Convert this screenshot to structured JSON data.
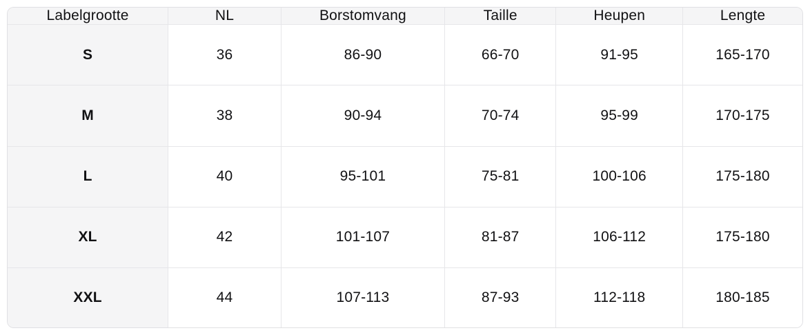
{
  "chart_data": {
    "type": "table",
    "columns": [
      "Labelgrootte",
      "NL",
      "Borstomvang",
      "Taille",
      "Heupen",
      "Lengte"
    ],
    "rows": [
      [
        "S",
        "36",
        "86-90",
        "66-70",
        "91-95",
        "165-170"
      ],
      [
        "M",
        "38",
        "90-94",
        "70-74",
        "95-99",
        "170-175"
      ],
      [
        "L",
        "40",
        "95-101",
        "75-81",
        "100-106",
        "175-180"
      ],
      [
        "XL",
        "42",
        "101-107",
        "81-87",
        "106-112",
        "175-180"
      ],
      [
        "XXL",
        "44",
        "107-113",
        "87-93",
        "112-118",
        "180-185"
      ]
    ]
  },
  "colors": {
    "header_bg": "#f5f5f6",
    "row_label_bg": "#f5f5f6",
    "cell_bg": "#ffffff",
    "grid_border": "#e6e6e9",
    "outer_border": "#e0e0e3",
    "text": "#111113"
  }
}
